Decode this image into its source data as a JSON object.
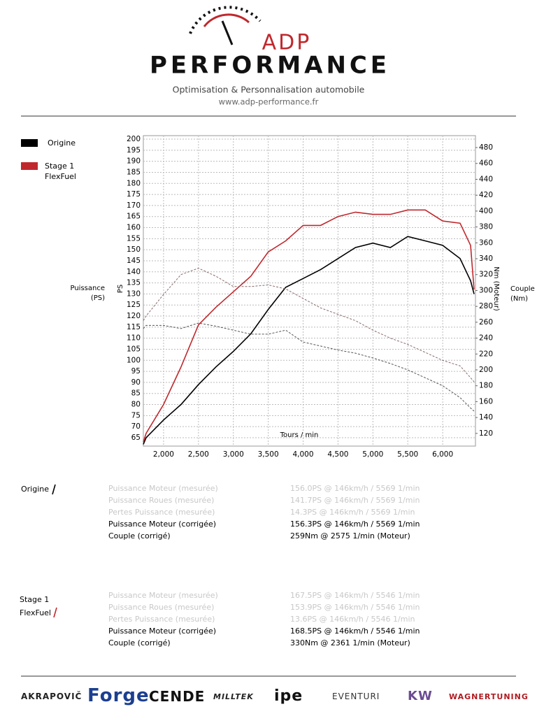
{
  "header": {
    "brand_top": "ADP",
    "brand_bottom": "PERFORMANCE",
    "tagline": "Optimisation & Personnalisation automobile",
    "url": "www.adp-performance.fr"
  },
  "chart_data": {
    "type": "line",
    "y_label_outer": "Puissance (PS)",
    "y_label": "PS",
    "y2_label": "Nm (Moteur)",
    "y2_label_outer": "Couple (Nm)",
    "x_label": "Tours / min",
    "x": [
      1710,
      1750,
      2000,
      2250,
      2500,
      2750,
      3000,
      3250,
      3500,
      3750,
      4000,
      4250,
      4500,
      4750,
      5000,
      5250,
      5500,
      5750,
      6000,
      6250,
      6400,
      6450
    ],
    "series": [
      {
        "name": "Origine",
        "color": "#000000",
        "values": [
          62,
          65,
          73,
          80,
          89,
          97,
          104,
          112,
          123,
          133,
          137,
          141,
          146,
          151,
          153,
          151,
          156,
          154,
          152,
          146,
          136,
          130
        ]
      },
      {
        "name": "Stage 1 FlexFuel",
        "color": "#c0282d",
        "values": [
          63,
          67,
          80,
          97,
          116,
          124,
          131,
          138,
          149,
          154,
          161,
          161,
          165,
          167,
          166,
          166,
          168,
          168,
          163,
          162,
          152,
          132
        ]
      },
      {
        "color": "#555555",
        "dashed": true,
        "axis": "y2",
        "values": [
          252,
          256,
          256,
          252,
          259,
          255,
          250,
          245,
          245,
          250,
          235,
          230,
          225,
          221,
          215,
          208,
          200,
          190,
          180,
          165,
          152,
          148
        ]
      },
      {
        "color": "#8a6a6a",
        "dashed": true,
        "axis": "y2",
        "values": [
          262,
          268,
          295,
          320,
          328,
          318,
          305,
          305,
          307,
          302,
          290,
          278,
          270,
          262,
          250,
          240,
          232,
          222,
          212,
          205,
          190,
          185
        ]
      }
    ],
    "xlim": [
      1710,
      6470
    ],
    "xticks": [
      {
        "value": 2000,
        "label": "2,000"
      },
      {
        "value": 2500,
        "label": "2,500"
      },
      {
        "value": 3000,
        "label": "3,000"
      },
      {
        "value": 3500,
        "label": "3,500"
      },
      {
        "value": 4000,
        "label": "4,000"
      },
      {
        "value": 4500,
        "label": "4,500"
      },
      {
        "value": 5000,
        "label": "5,000"
      },
      {
        "value": 5500,
        "label": "5,500"
      },
      {
        "value": 6000,
        "label": "6,000"
      }
    ],
    "ylim": [
      61.2,
      201.6
    ],
    "yticks": [
      65,
      70,
      75,
      80,
      85,
      90,
      95,
      100,
      105,
      110,
      115,
      120,
      125,
      130,
      135,
      140,
      145,
      150,
      155,
      160,
      165,
      170,
      175,
      180,
      185,
      190,
      195,
      200
    ],
    "y2lim": [
      104,
      495
    ],
    "y2ticks": [
      120,
      140,
      160,
      180,
      200,
      220,
      240,
      260,
      280,
      300,
      320,
      340,
      360,
      380,
      400,
      420,
      440,
      460,
      480
    ],
    "grid": true
  },
  "results": [
    {
      "label": "Origine",
      "rows": [
        [
          "Puissance Moteur (mesurée)",
          "156.0PS @ 146km/h / 5569 1/min"
        ],
        [
          "Puissance Roues (mesurée)",
          "141.7PS @ 146km/h / 5569 1/min"
        ],
        [
          "Pertes Puissance (mesurée)",
          "14.3PS @ 146km/h / 5569 1/min"
        ],
        [
          "Puissance Moteur (corrigée)",
          "156.3PS @ 146km/h / 5569 1/min"
        ],
        [
          "Couple (corrigé)",
          "259Nm @ 2575 1/min (Moteur)"
        ]
      ]
    },
    {
      "label": "Stage 1 FlexFuel",
      "rows": [
        [
          "Puissance Moteur (mesurée)",
          "167.5PS @ 146km/h / 5546 1/min"
        ],
        [
          "Puissance Roues (mesurée)",
          "153.9PS @ 146km/h / 5546 1/min"
        ],
        [
          "Pertes Puissance (mesurée)",
          "13.6PS @ 146km/h / 5546 1/min"
        ],
        [
          "Puissance Moteur (corrigée)",
          "168.5PS @ 146km/h / 5546 1/min"
        ],
        [
          "Couple (corrigé)",
          "330Nm @ 2361 1/min (Moteur)"
        ]
      ]
    }
  ],
  "footer": {
    "brands": [
      "AKRAPOVIČ",
      "Forge",
      "CENDE",
      "MILLTEK",
      "ipe",
      "EVENTURI",
      "KW",
      "WAGNERTUNING"
    ]
  }
}
